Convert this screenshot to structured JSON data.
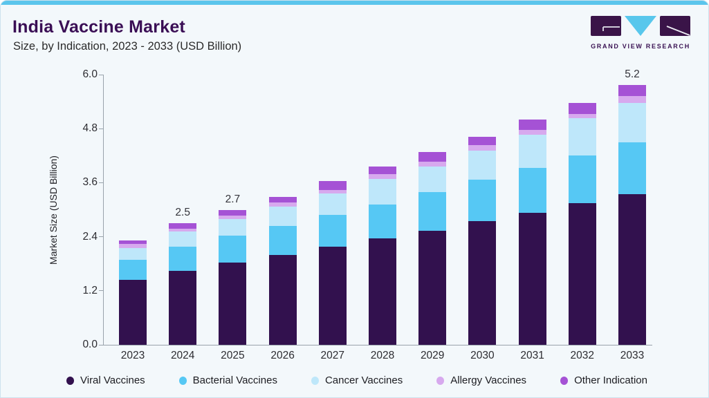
{
  "header": {
    "title": "India Vaccine Market",
    "subtitle": "Size, by Indication, 2023 - 2033 (USD Billion)"
  },
  "logo": {
    "text": "GRAND VIEW RESEARCH",
    "mark_color": "#3A1448",
    "triangle_color": "#58C7EC"
  },
  "chart_data": {
    "type": "bar",
    "stacked": true,
    "title": "India Vaccine Market Size, by Indication, 2023 - 2033 (USD Billion)",
    "xlabel": "",
    "ylabel": "Market Size (USD Billion)",
    "ylim": [
      0.0,
      6.0
    ],
    "y_ticks": [
      "0.0",
      "1.2",
      "2.4",
      "3.6",
      "4.8",
      "6.0"
    ],
    "grid": false,
    "legend_position": "bottom",
    "categories": [
      "2023",
      "2024",
      "2025",
      "2026",
      "2027",
      "2028",
      "2029",
      "2030",
      "2031",
      "2032",
      "2033"
    ],
    "series": [
      {
        "name": "Viral Vaccines",
        "color": "#32114E",
        "values": [
          1.3,
          1.48,
          1.64,
          1.8,
          1.96,
          2.13,
          2.28,
          2.47,
          2.64,
          2.83,
          3.01
        ]
      },
      {
        "name": "Bacterial Vaccines",
        "color": "#56C8F4",
        "values": [
          0.4,
          0.48,
          0.54,
          0.58,
          0.64,
          0.68,
          0.77,
          0.83,
          0.9,
          0.95,
          1.04
        ]
      },
      {
        "name": "Cancer Vaccines",
        "color": "#BEE7FA",
        "values": [
          0.23,
          0.3,
          0.33,
          0.39,
          0.43,
          0.5,
          0.51,
          0.58,
          0.66,
          0.75,
          0.79
        ]
      },
      {
        "name": "Allergy Vaccines",
        "color": "#D7A9EE",
        "values": [
          0.08,
          0.06,
          0.07,
          0.08,
          0.07,
          0.1,
          0.1,
          0.11,
          0.1,
          0.08,
          0.14
        ]
      },
      {
        "name": "Other Indication",
        "color": "#A552D5",
        "values": [
          0.08,
          0.11,
          0.11,
          0.11,
          0.17,
          0.15,
          0.2,
          0.17,
          0.21,
          0.22,
          0.22
        ]
      }
    ],
    "bar_total_labels": {
      "2024": "2.5",
      "2025": "2.7",
      "2033": "5.2"
    }
  }
}
